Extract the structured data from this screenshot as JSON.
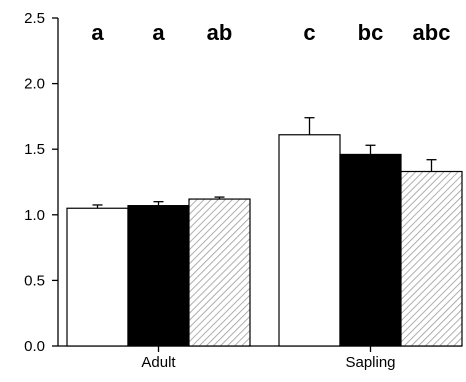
{
  "chart_data": {
    "type": "bar",
    "title": "",
    "xlabel": "",
    "ylabel": "",
    "ylim": [
      0,
      2.5
    ],
    "yticks": [
      0.0,
      0.5,
      1.0,
      1.5,
      2.0,
      2.5
    ],
    "ytick_labels": [
      "0.0",
      "0.5",
      "1.0",
      "1.5",
      "2.0",
      "2.5"
    ],
    "categories": [
      "Adult",
      "Sapling"
    ],
    "grid": false,
    "legend": "none",
    "series": [
      {
        "fill": "#ffffff",
        "pattern": "none",
        "values": [
          1.05,
          1.61
        ],
        "errors": [
          0.025,
          0.13
        ]
      },
      {
        "fill": "#000000",
        "pattern": "none",
        "values": [
          1.07,
          1.46
        ],
        "errors": [
          0.03,
          0.07
        ]
      },
      {
        "fill": "#ffffff",
        "pattern": "hatch",
        "values": [
          1.12,
          1.33
        ],
        "errors": [
          0.015,
          0.09
        ]
      }
    ],
    "significance_labels": [
      [
        "a",
        "a",
        "ab"
      ],
      [
        "c",
        "bc",
        "abc"
      ]
    ]
  }
}
